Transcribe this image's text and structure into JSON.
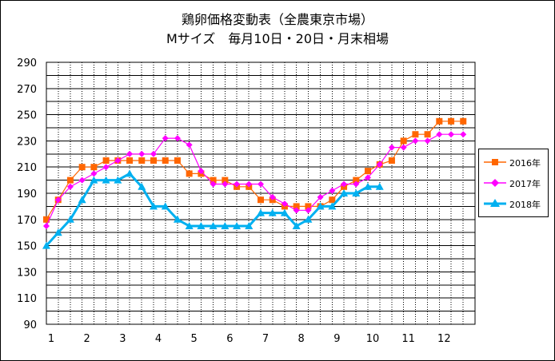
{
  "title_line1": "鶏卵価格変動表（全農東京市場）",
  "title_line2": "Mサイズ　毎月10日・20日・月末相場",
  "chart_data": {
    "type": "line",
    "x_ticks": [
      "1",
      "2",
      "3",
      "4",
      "5",
      "6",
      "7",
      "8",
      "9",
      "10",
      "11",
      "12"
    ],
    "y_ticks": [
      "290",
      "270",
      "250",
      "230",
      "210",
      "190",
      "170",
      "150",
      "130",
      "110",
      "90"
    ],
    "ylim": [
      90,
      290
    ],
    "xlim": [
      1,
      13
    ],
    "grid": true,
    "legend_position": "right",
    "series": [
      {
        "name": "2016年",
        "color": "#ff6600",
        "marker": "square",
        "x": [
          1,
          1.33,
          1.67,
          2,
          2.33,
          2.67,
          3,
          3.33,
          3.67,
          4,
          4.33,
          4.67,
          5,
          5.33,
          5.67,
          6,
          6.33,
          6.67,
          7,
          7.33,
          7.67,
          8,
          8.33,
          8.67,
          9,
          9.33,
          9.67,
          10,
          10.33,
          10.67,
          11,
          11.33,
          11.67,
          12,
          12.33,
          12.67
        ],
        "values": [
          170,
          185,
          200,
          210,
          210,
          215,
          215,
          215,
          215,
          215,
          215,
          215,
          205,
          205,
          200,
          200,
          195,
          195,
          185,
          185,
          180,
          180,
          180,
          180,
          185,
          195,
          200,
          207,
          212,
          215,
          230,
          235,
          235,
          245,
          245,
          245
        ]
      },
      {
        "name": "2017年",
        "color": "#ff00ff",
        "marker": "diamond",
        "x": [
          1,
          1.33,
          1.67,
          2,
          2.33,
          2.67,
          3,
          3.33,
          3.67,
          4,
          4.33,
          4.67,
          5,
          5.33,
          5.67,
          6,
          6.33,
          6.67,
          7,
          7.33,
          7.67,
          8,
          8.33,
          8.67,
          9,
          9.33,
          9.67,
          10,
          10.33,
          10.67,
          11,
          11.33,
          11.67,
          12,
          12.33,
          12.67
        ],
        "values": [
          165,
          185,
          195,
          200,
          205,
          210,
          215,
          220,
          220,
          220,
          232,
          232,
          227,
          207,
          197,
          197,
          197,
          197,
          197,
          187,
          182,
          177,
          177,
          187,
          192,
          197,
          197,
          202,
          212,
          225,
          225,
          230,
          230,
          235,
          235,
          235
        ]
      },
      {
        "name": "2018年",
        "color": "#00b0f0",
        "marker": "triangle",
        "x": [
          1,
          1.33,
          1.67,
          2,
          2.33,
          2.67,
          3,
          3.33,
          3.67,
          4,
          4.33,
          4.67,
          5,
          5.33,
          5.67,
          6,
          6.33,
          6.67,
          7,
          7.33,
          7.67,
          8,
          8.33,
          8.67,
          9,
          9.33,
          9.67,
          10,
          10.33
        ],
        "values": [
          150,
          160,
          170,
          185,
          200,
          200,
          200,
          205,
          195,
          180,
          180,
          170,
          165,
          165,
          165,
          165,
          165,
          165,
          175,
          175,
          175,
          165,
          170,
          180,
          180,
          190,
          190,
          195,
          195
        ]
      }
    ]
  }
}
